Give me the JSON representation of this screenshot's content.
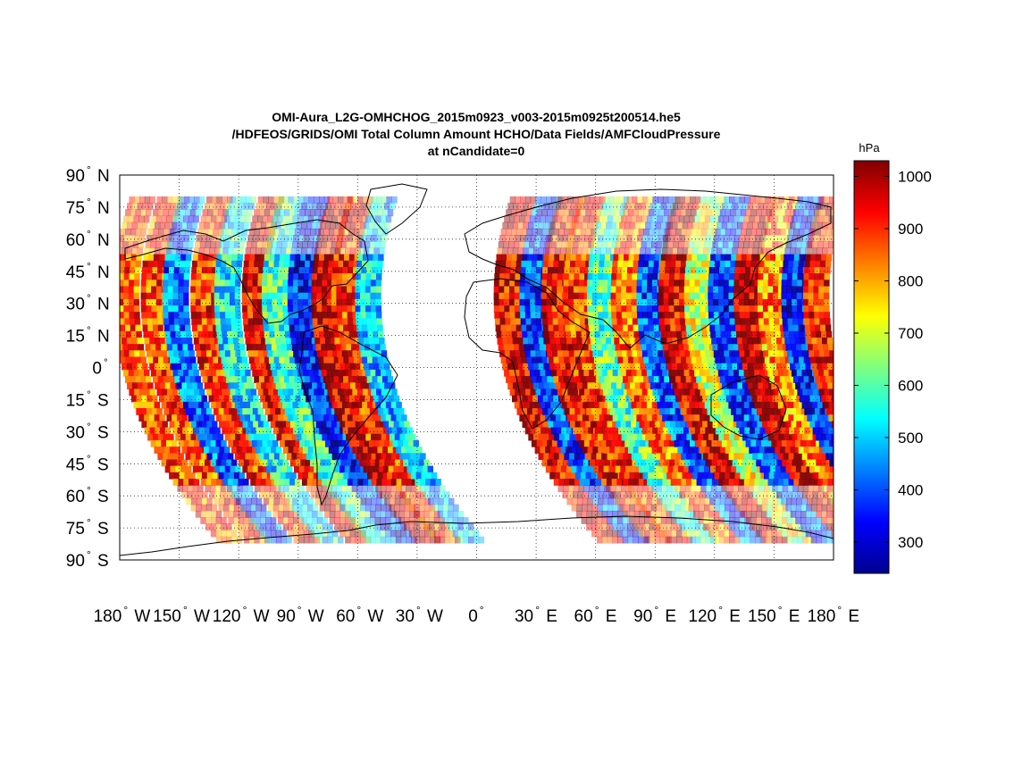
{
  "chart_data": {
    "type": "heatmap",
    "projection": "equirectangular",
    "title_lines": [
      "OMI-Aura_L2G-OMHCHOG_2015m0923_v003-2015m0925t200514.he5",
      "/HDFEOS/GRIDS/OMI Total Column Amount HCHO/Data Fields/AMFCloudPressure",
      "at nCandidate=0"
    ],
    "xlim": [
      -180,
      180
    ],
    "ylim": [
      -90,
      90
    ],
    "x_ticks": [
      {
        "value": -180,
        "num": "180",
        "hem": "W"
      },
      {
        "value": -150,
        "num": "150",
        "hem": "W"
      },
      {
        "value": -120,
        "num": "120",
        "hem": "W"
      },
      {
        "value": -90,
        "num": "90",
        "hem": "W"
      },
      {
        "value": -60,
        "num": "60",
        "hem": "W"
      },
      {
        "value": -30,
        "num": "30",
        "hem": "W"
      },
      {
        "value": 0,
        "num": "0",
        "hem": ""
      },
      {
        "value": 30,
        "num": "30",
        "hem": "E"
      },
      {
        "value": 60,
        "num": "60",
        "hem": "E"
      },
      {
        "value": 90,
        "num": "90",
        "hem": "E"
      },
      {
        "value": 120,
        "num": "120",
        "hem": "E"
      },
      {
        "value": 150,
        "num": "150",
        "hem": "E"
      },
      {
        "value": 180,
        "num": "180",
        "hem": "E"
      }
    ],
    "y_ticks": [
      {
        "value": 90,
        "num": "90",
        "hem": "N"
      },
      {
        "value": 75,
        "num": "75",
        "hem": "N"
      },
      {
        "value": 60,
        "num": "60",
        "hem": "N"
      },
      {
        "value": 45,
        "num": "45",
        "hem": "N"
      },
      {
        "value": 30,
        "num": "30",
        "hem": "N"
      },
      {
        "value": 15,
        "num": "15",
        "hem": "N"
      },
      {
        "value": 0,
        "num": "0",
        "hem": ""
      },
      {
        "value": -15,
        "num": "15",
        "hem": "S"
      },
      {
        "value": -30,
        "num": "30",
        "hem": "S"
      },
      {
        "value": -45,
        "num": "45",
        "hem": "S"
      },
      {
        "value": -60,
        "num": "60",
        "hem": "S"
      },
      {
        "value": -75,
        "num": "75",
        "hem": "S"
      },
      {
        "value": -90,
        "num": "90",
        "hem": "S"
      }
    ],
    "degree_symbol": "°",
    "grid": "dotted",
    "colormap": "jet",
    "colorbar": {
      "unit": "hPa",
      "range": [
        240,
        1030
      ],
      "ticks": [
        300,
        400,
        500,
        600,
        700,
        800,
        900,
        1000
      ],
      "location": "right"
    },
    "swaths": [
      {
        "lon_equator": -172,
        "value": 870
      },
      {
        "lon_equator": -158,
        "value": 880
      },
      {
        "lon_equator": -147,
        "value": 420
      },
      {
        "lon_equator": -133,
        "value": 900
      },
      {
        "lon_equator": -121,
        "value": 540
      },
      {
        "lon_equator": -107,
        "value": 940
      },
      {
        "lon_equator": -97,
        "value": 580
      },
      {
        "lon_equator": -84,
        "value": 360
      },
      {
        "lon_equator": -72,
        "value": 980
      },
      {
        "lon_equator": -62,
        "value": 900
      },
      {
        "lon_equator": -50,
        "value": 500
      },
      {
        "lon_equator": 20,
        "value": 950
      },
      {
        "lon_equator": 33,
        "value": 380
      },
      {
        "lon_equator": 44,
        "value": 930
      },
      {
        "lon_equator": 55,
        "value": 900
      },
      {
        "lon_equator": 67,
        "value": 600
      },
      {
        "lon_equator": 79,
        "value": 850
      },
      {
        "lon_equator": 92,
        "value": 400
      },
      {
        "lon_equator": 103,
        "value": 960
      },
      {
        "lon_equator": 116,
        "value": 700
      },
      {
        "lon_equator": 128,
        "value": 390
      },
      {
        "lon_equator": 141,
        "value": 980
      },
      {
        "lon_equator": 153,
        "value": 820
      },
      {
        "lon_equator": 165,
        "value": 360
      },
      {
        "lon_equator": 176,
        "value": 930
      }
    ],
    "swath_width_deg": 13,
    "swath_tilt_deg_per_deg_lat": 0.28
  }
}
